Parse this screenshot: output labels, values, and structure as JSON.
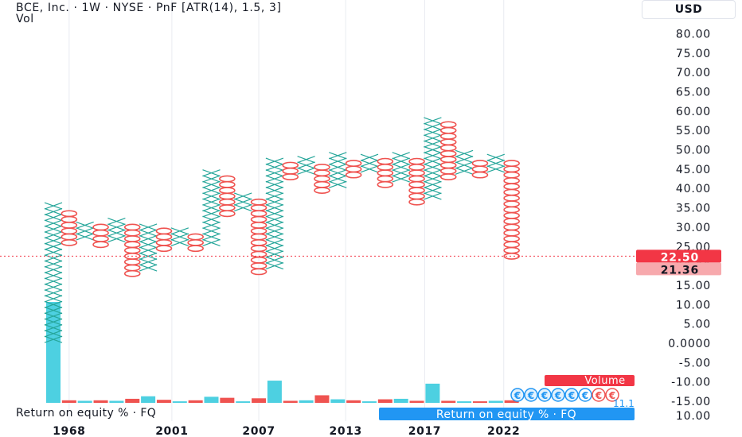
{
  "header": {
    "title": "BCE, Inc. · 1W · NYSE · PnF [ATR(14), 1.5, 3]",
    "subtitle": "Vol",
    "currency": "USD"
  },
  "colors": {
    "x_color": "#26a69a",
    "o_color": "#ef5350",
    "volume_color": "#4dd0e1",
    "current_price_bg": "#f23645",
    "prev_price_bg": "#f7a9ad",
    "blue_badge": "#2196f3",
    "grid": "#e9ecf1"
  },
  "chart_data": {
    "type": "point_and_figure",
    "title": "BCE, Inc. · 1W · NYSE · PnF [ATR(14), 1.5, 3]",
    "box_size": 1.5,
    "reversal": 3,
    "y_axis_ticks": [
      "80.00",
      "75.00",
      "70.00",
      "65.00",
      "60.00",
      "55.00",
      "50.00",
      "45.00",
      "40.00",
      "35.00",
      "30.00",
      "25.00",
      "20.00",
      "15.00",
      "10.00",
      "5.00",
      "0.0000",
      "-5.00",
      "-10.00",
      "-15.00"
    ],
    "ylim": [
      -15,
      80
    ],
    "x_axis_labels": [
      {
        "col": 1,
        "text": "1968"
      },
      {
        "col": 7.5,
        "text": "2001"
      },
      {
        "col": 13,
        "text": "2007"
      },
      {
        "col": 18.5,
        "text": "2013"
      },
      {
        "col": 23.5,
        "text": "2017"
      },
      {
        "col": 28.5,
        "text": "2022"
      }
    ],
    "columns": [
      {
        "type": "X",
        "low": 1.0,
        "high": 35.0
      },
      {
        "type": "O",
        "low": 26.0,
        "high": 33.5
      },
      {
        "type": "X",
        "low": 27.5,
        "high": 30.5
      },
      {
        "type": "O",
        "low": 25.5,
        "high": 29.5
      },
      {
        "type": "X",
        "low": 27.0,
        "high": 32.0
      },
      {
        "type": "O",
        "low": 18.0,
        "high": 30.5
      },
      {
        "type": "X",
        "low": 19.5,
        "high": 30.5
      },
      {
        "type": "O",
        "low": 24.5,
        "high": 29.0
      },
      {
        "type": "X",
        "low": 26.0,
        "high": 29.0
      },
      {
        "type": "O",
        "low": 24.5,
        "high": 27.5
      },
      {
        "type": "X",
        "low": 26.0,
        "high": 44.0
      },
      {
        "type": "O",
        "low": 33.5,
        "high": 42.5
      },
      {
        "type": "X",
        "low": 35.0,
        "high": 38.0
      },
      {
        "type": "O",
        "low": 18.5,
        "high": 36.5
      },
      {
        "type": "X",
        "low": 20.0,
        "high": 47.0
      },
      {
        "type": "O",
        "low": 43.0,
        "high": 45.5
      },
      {
        "type": "X",
        "low": 44.5,
        "high": 47.0
      },
      {
        "type": "O",
        "low": 39.5,
        "high": 45.5
      },
      {
        "type": "X",
        "low": 41.0,
        "high": 48.5
      },
      {
        "type": "O",
        "low": 43.5,
        "high": 47.0
      },
      {
        "type": "X",
        "low": 45.0,
        "high": 48.5
      },
      {
        "type": "O",
        "low": 41.0,
        "high": 47.0
      },
      {
        "type": "X",
        "low": 42.5,
        "high": 48.5
      },
      {
        "type": "O",
        "low": 36.5,
        "high": 47.0
      },
      {
        "type": "X",
        "low": 38.0,
        "high": 57.5
      },
      {
        "type": "O",
        "low": 43.0,
        "high": 56.0
      },
      {
        "type": "X",
        "low": 44.5,
        "high": 48.5
      },
      {
        "type": "O",
        "low": 43.5,
        "high": 47.0
      },
      {
        "type": "X",
        "low": 45.0,
        "high": 48.5
      },
      {
        "type": "O",
        "low": 22.5,
        "high": 47.0
      }
    ],
    "volume": {
      "max_value": 10.0,
      "colors_by_column": [
        "teal",
        "red",
        "teal",
        "red",
        "teal",
        "red",
        "teal",
        "red",
        "teal",
        "red",
        "teal",
        "red",
        "teal",
        "red",
        "teal",
        "red",
        "teal",
        "red",
        "teal",
        "red",
        "teal",
        "red",
        "teal",
        "red",
        "teal",
        "red",
        "teal",
        "red",
        "teal",
        "red"
      ],
      "values": [
        10.0,
        0.25,
        0.2,
        0.25,
        0.2,
        0.4,
        0.65,
        0.3,
        0.15,
        0.25,
        0.6,
        0.5,
        0.15,
        0.45,
        2.2,
        0.2,
        0.25,
        0.75,
        0.35,
        0.25,
        0.15,
        0.35,
        0.4,
        0.2,
        1.9,
        0.2,
        0.15,
        0.15,
        0.2,
        0.25
      ]
    },
    "price_labels": {
      "current": "22.50",
      "previous": "21.36",
      "current_value": 22.5
    },
    "volume_badge": "Volume",
    "badge_glyphs": "€€€€€€€€"
  },
  "indicator": {
    "roe_label": "Return on equity % · FQ",
    "roe_badge": "Return on equity % · FQ",
    "roe_tick": "10.00",
    "partial_value": "11.1"
  }
}
